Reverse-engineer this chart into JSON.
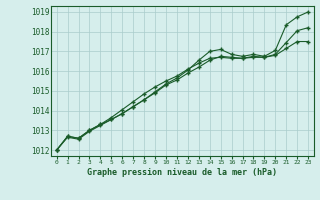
{
  "xlabel": "Graphe pression niveau de la mer (hPa)",
  "xlim": [
    -0.5,
    23.5
  ],
  "ylim": [
    1011.7,
    1019.3
  ],
  "yticks": [
    1012,
    1013,
    1014,
    1015,
    1016,
    1017,
    1018,
    1019
  ],
  "xticks": [
    0,
    1,
    2,
    3,
    4,
    5,
    6,
    7,
    8,
    9,
    10,
    11,
    12,
    13,
    14,
    15,
    16,
    17,
    18,
    19,
    20,
    21,
    22,
    23
  ],
  "background_color": "#d6eeec",
  "grid_color": "#aacccc",
  "line_color": "#1a5c2a",
  "line1_y": [
    1012.0,
    1012.7,
    1012.6,
    1013.0,
    1013.3,
    1013.55,
    1013.85,
    1014.2,
    1014.55,
    1014.95,
    1015.35,
    1015.65,
    1016.05,
    1016.55,
    1017.0,
    1017.1,
    1016.85,
    1016.75,
    1016.85,
    1016.75,
    1017.05,
    1018.35,
    1018.75,
    1019.0
  ],
  "line2_y": [
    1012.0,
    1012.7,
    1012.6,
    1013.0,
    1013.3,
    1013.65,
    1014.05,
    1014.45,
    1014.85,
    1015.2,
    1015.5,
    1015.75,
    1016.1,
    1016.4,
    1016.65,
    1016.7,
    1016.65,
    1016.65,
    1016.7,
    1016.7,
    1016.8,
    1017.15,
    1017.5,
    1017.5
  ],
  "line3_y": [
    1012.0,
    1012.65,
    1012.55,
    1012.95,
    1013.25,
    1013.55,
    1013.85,
    1014.2,
    1014.55,
    1014.9,
    1015.3,
    1015.55,
    1015.9,
    1016.2,
    1016.55,
    1016.75,
    1016.7,
    1016.65,
    1016.75,
    1016.7,
    1016.85,
    1017.45,
    1018.05,
    1018.2
  ]
}
